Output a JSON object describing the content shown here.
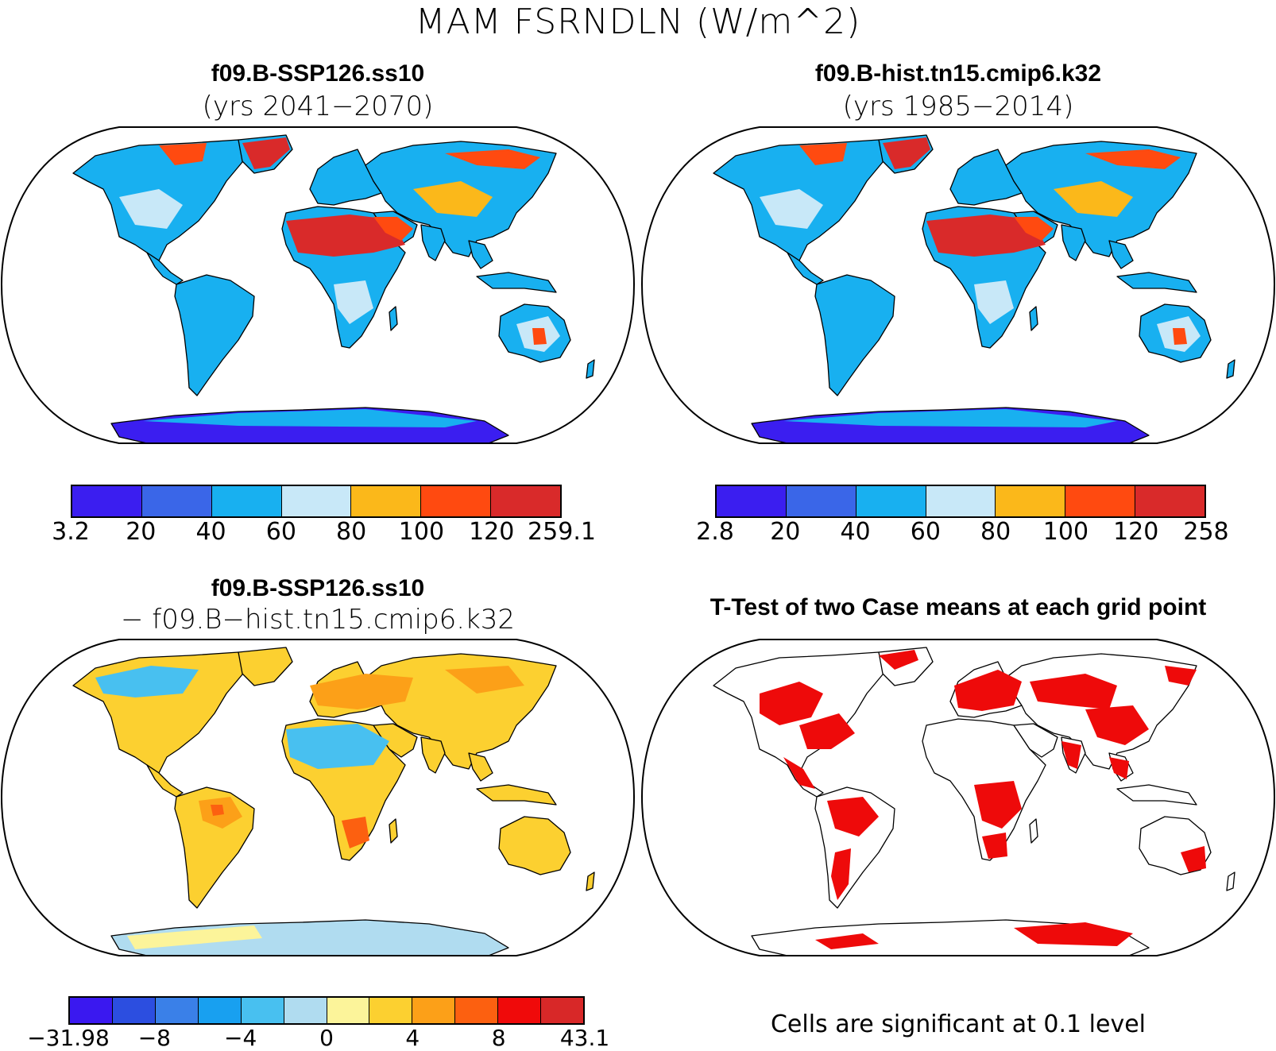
{
  "title": "MAM FSRNDLN (W/m^2)",
  "panels": {
    "top_left": {
      "title": "f09.B-SSP126.ss10",
      "subtitle": "(yrs 2041−2070)",
      "colorbar": {
        "colors": [
          "#3b1ef0",
          "#3a66e8",
          "#18b0f0",
          "#c8e8f8",
          "#fbb81a",
          "#ff4a10",
          "#d92a2a"
        ],
        "labels": [
          "3.2",
          "20",
          "40",
          "60",
          "80",
          "100",
          "120",
          "259.1"
        ]
      }
    },
    "top_right": {
      "title": "f09.B-hist.tn15.cmip6.k32",
      "subtitle": "(yrs 1985−2014)",
      "colorbar": {
        "colors": [
          "#3b1ef0",
          "#3a66e8",
          "#18b0f0",
          "#c8e8f8",
          "#fbb81a",
          "#ff4a10",
          "#d92a2a"
        ],
        "labels": [
          "2.8",
          "20",
          "40",
          "60",
          "80",
          "100",
          "120",
          "258"
        ]
      }
    },
    "bottom_left": {
      "title": "f09.B-SSP126.ss10",
      "subtitle": "− f09.B−hist.tn15.cmip6.k32",
      "colorbar": {
        "colors": [
          "#3a18f0",
          "#2c4ee0",
          "#3a80e8",
          "#18a0f0",
          "#48c0f0",
          "#b0dcf0",
          "#fcf49a",
          "#fcd030",
          "#fca018",
          "#fc6010",
          "#f00a0a",
          "#d82828"
        ],
        "labels": [
          "−31.98",
          "−8",
          "−4",
          "0",
          "4",
          "8",
          "43.1"
        ]
      }
    },
    "bottom_right": {
      "title": "T-Test of two Case means at each grid point",
      "note": "Cells are significant at 0.1 level"
    }
  },
  "map_colors": {
    "land_tl": "#18b0f0",
    "land_tr": "#18b0f0",
    "land_bl": "#fcd030",
    "land_br": "#ffffff",
    "desert_hot": "#d92a2a",
    "significant": "#ee0a0a",
    "antarctica_top": "#3b1ef0",
    "antarctica_bl": "#b0dcf0"
  }
}
